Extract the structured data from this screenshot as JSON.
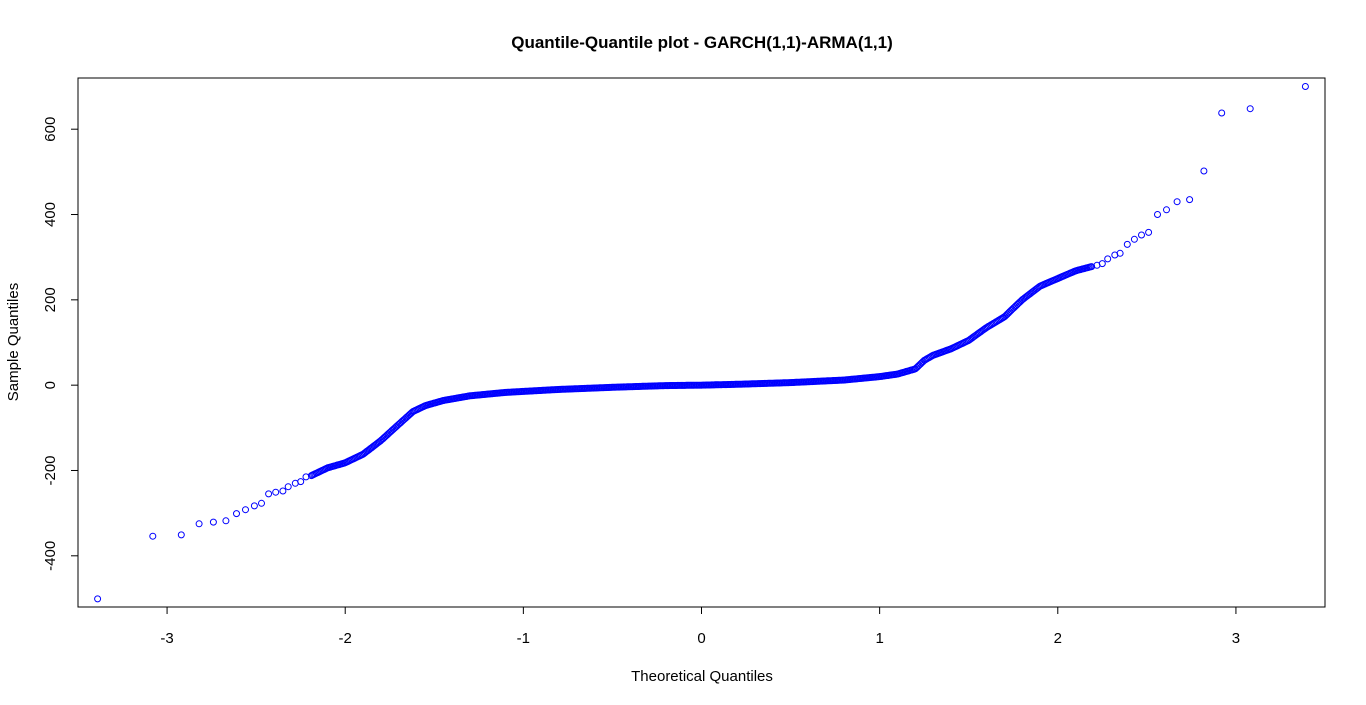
{
  "chart_data": {
    "type": "scatter",
    "title": "Quantile-Quantile plot - GARCH(1,1)-ARMA(1,1)",
    "xlabel": "Theoretical Quantiles",
    "ylabel": "Sample Quantiles",
    "xlim": [
      -3.5,
      3.5
    ],
    "ylim": [
      -520,
      720
    ],
    "x_ticks": [
      -3,
      -2,
      -1,
      0,
      1,
      2,
      3
    ],
    "y_ticks": [
      -400,
      -200,
      0,
      200,
      400,
      600
    ],
    "grid": false,
    "legend": "none",
    "marker": "open-circle",
    "point_color": "#0000ff",
    "highlight_points": [
      {
        "x": -3.39,
        "y": -501
      },
      {
        "x": -3.08,
        "y": -354
      },
      {
        "x": -2.92,
        "y": -351
      },
      {
        "x": -2.82,
        "y": -325
      },
      {
        "x": -2.74,
        "y": -321
      },
      {
        "x": -2.67,
        "y": -318
      },
      {
        "x": -2.61,
        "y": -301
      },
      {
        "x": -2.56,
        "y": -292
      },
      {
        "x": -2.51,
        "y": -283
      },
      {
        "x": -2.47,
        "y": -277
      },
      {
        "x": -2.43,
        "y": -255
      },
      {
        "x": -2.39,
        "y": -251
      },
      {
        "x": -2.35,
        "y": -248
      },
      {
        "x": -2.32,
        "y": -238
      },
      {
        "x": -2.28,
        "y": -230
      },
      {
        "x": -2.25,
        "y": -226
      },
      {
        "x": -2.22,
        "y": -215
      },
      {
        "x": -2.19,
        "y": -212
      },
      {
        "x": 2.19,
        "y": 278
      },
      {
        "x": 2.22,
        "y": 281
      },
      {
        "x": 2.25,
        "y": 285
      },
      {
        "x": 2.28,
        "y": 296
      },
      {
        "x": 2.32,
        "y": 305
      },
      {
        "x": 2.35,
        "y": 309
      },
      {
        "x": 2.39,
        "y": 330
      },
      {
        "x": 2.43,
        "y": 342
      },
      {
        "x": 2.47,
        "y": 352
      },
      {
        "x": 2.51,
        "y": 358
      },
      {
        "x": 2.56,
        "y": 400
      },
      {
        "x": 2.61,
        "y": 411
      },
      {
        "x": 2.67,
        "y": 430
      },
      {
        "x": 2.74,
        "y": 435
      },
      {
        "x": 2.82,
        "y": 502
      },
      {
        "x": 2.92,
        "y": 638
      },
      {
        "x": 3.08,
        "y": 648
      },
      {
        "x": 3.39,
        "y": 700
      }
    ],
    "curve_knots": [
      [
        -2.19,
        -212
      ],
      [
        -2.1,
        -194
      ],
      [
        -2.0,
        -182
      ],
      [
        -1.9,
        -162
      ],
      [
        -1.8,
        -130
      ],
      [
        -1.7,
        -92
      ],
      [
        -1.62,
        -62
      ],
      [
        -1.55,
        -48
      ],
      [
        -1.45,
        -36
      ],
      [
        -1.3,
        -25
      ],
      [
        -1.1,
        -17
      ],
      [
        -0.8,
        -10
      ],
      [
        -0.5,
        -5
      ],
      [
        -0.2,
        -1
      ],
      [
        0.0,
        0
      ],
      [
        0.2,
        2
      ],
      [
        0.5,
        6
      ],
      [
        0.8,
        12
      ],
      [
        1.0,
        20
      ],
      [
        1.1,
        26
      ],
      [
        1.2,
        38
      ],
      [
        1.25,
        58
      ],
      [
        1.3,
        70
      ],
      [
        1.4,
        85
      ],
      [
        1.5,
        105
      ],
      [
        1.6,
        135
      ],
      [
        1.7,
        160
      ],
      [
        1.8,
        200
      ],
      [
        1.9,
        232
      ],
      [
        2.0,
        250
      ],
      [
        2.1,
        268
      ],
      [
        2.19,
        278
      ]
    ]
  }
}
